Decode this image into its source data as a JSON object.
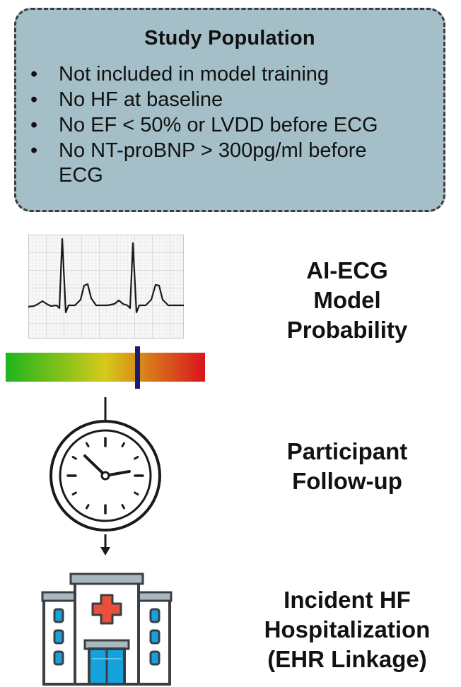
{
  "population": {
    "title": "Study Population",
    "items": [
      {
        "text": "Not included in model training"
      },
      {
        "text": "No HF at baseline"
      },
      {
        "text": "No EF < 50% or LVDD before ECG"
      },
      {
        "text": "No NT-proBNP > 300pg/ml before ECG"
      }
    ]
  },
  "steps": {
    "ai_ecg": [
      "AI-ECG",
      "Model",
      "Probability"
    ],
    "followup": [
      "Participant",
      "Follow-up"
    ],
    "incident": [
      "Incident HF",
      "Hospitalization",
      "(EHR Linkage)"
    ]
  },
  "icons": {
    "ecg": "ecg-strip-icon",
    "scale": "probability-gradient-bar",
    "clock": "clock-icon",
    "hospital": "hospital-icon"
  },
  "colors": {
    "box_fill": "#a4bfc8",
    "gradient_start": "#1db61d",
    "gradient_mid": "#d6c91a",
    "gradient_end": "#d9141c",
    "marker": "#1c1d6b",
    "hospital_blue": "#16a2dc",
    "cross_red": "#e8503b"
  }
}
